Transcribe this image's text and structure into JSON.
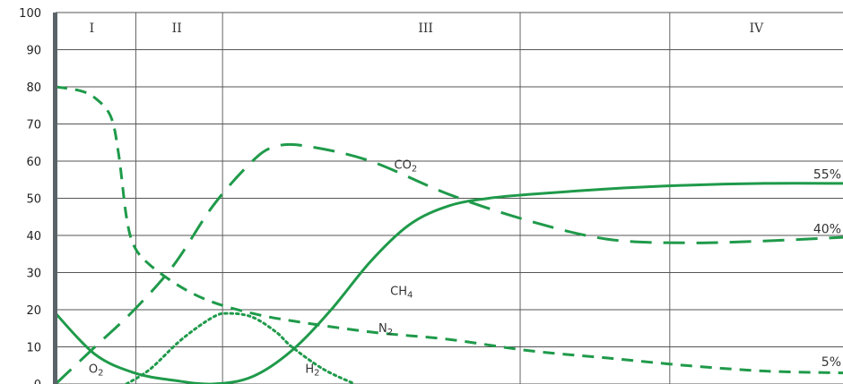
{
  "chart_data": {
    "type": "line",
    "title": "",
    "xlabel": "",
    "ylabel": "",
    "ylim": [
      0,
      100
    ],
    "y_ticks": [
      "0",
      "10",
      "20",
      "30",
      "40",
      "50",
      "60",
      "70",
      "80",
      "90",
      "100"
    ],
    "grid": true,
    "phases": [
      "I",
      "II",
      "III",
      "IV"
    ],
    "line_color": "#1f9a4a",
    "series": [
      {
        "name": "CO2",
        "label_main": "CO",
        "label_sub": "2",
        "style": "long-dash",
        "x": [
          0,
          5,
          10,
          15,
          20,
          25,
          28,
          32,
          40,
          50,
          60,
          70,
          80,
          90,
          100
        ],
        "y": [
          0,
          10,
          20,
          32,
          48,
          60,
          64,
          64,
          60,
          51,
          44,
          39,
          38,
          38.5,
          39.5
        ]
      },
      {
        "name": "O2",
        "label_main": "O",
        "label_sub": "2",
        "style": "short-dash",
        "x": [
          0,
          3,
          5,
          7,
          8,
          9,
          10,
          12,
          16,
          20,
          25,
          30,
          40,
          50,
          60,
          70,
          80,
          90,
          100
        ],
        "y": [
          80,
          79,
          77,
          72,
          62,
          45,
          37,
          32,
          26,
          22,
          19,
          17,
          14,
          12,
          9,
          7,
          5,
          3.5,
          3
        ]
      },
      {
        "name": "N2",
        "label_main": "N",
        "label_sub": "2",
        "style": "short-dash",
        "x": [],
        "y": []
      },
      {
        "name": "CH4",
        "label_main": "CH",
        "label_sub": "4",
        "style": "solid",
        "x": [
          0,
          5,
          10,
          15,
          20,
          25,
          30,
          35,
          40,
          45,
          50,
          55,
          60,
          70,
          80,
          90,
          100
        ],
        "y": [
          19,
          8,
          3,
          1,
          0,
          2,
          9,
          20,
          33,
          43,
          48,
          50,
          51,
          52.5,
          53.5,
          54,
          54
        ]
      },
      {
        "name": "H2",
        "label_main": "H",
        "label_sub": "2",
        "style": "dotted",
        "x": [
          9,
          12,
          16,
          20,
          22,
          25,
          28,
          30,
          34,
          38
        ],
        "y": [
          0,
          4,
          12,
          18,
          19,
          18,
          14,
          10,
          4,
          0
        ]
      }
    ],
    "end_labels": [
      "55%",
      "40%",
      "5%"
    ]
  }
}
